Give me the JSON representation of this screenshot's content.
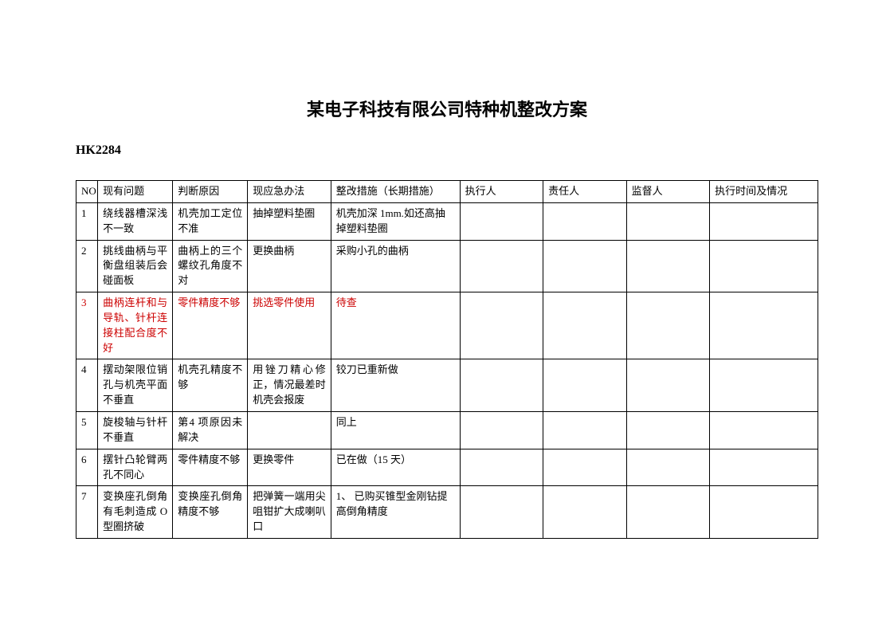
{
  "title": "某电子科技有限公司特种机整改方案",
  "subtitle": "HK2284",
  "columns": {
    "no": "NO",
    "problem": "现有问题",
    "reason": "判断原因",
    "emergency": "现应急办法",
    "measure": "整改措施（长期措施）",
    "executor": "执行人",
    "responsible": "责任人",
    "supervisor": "监督人",
    "time": "执行时间及情况"
  },
  "rows": [
    {
      "no": "1",
      "problem": "绕线器槽深浅不一致",
      "reason": "机壳加工定位不准",
      "emergency": "抽掉塑料垫圈",
      "measure": "机壳加深 1mm.如还高抽掉塑料垫圈",
      "executor": "",
      "responsible": "",
      "supervisor": "",
      "time": "",
      "color": "#000000"
    },
    {
      "no": "2",
      "problem": "挑线曲柄与平衡盘组装后会碰面板",
      "reason": "曲柄上的三个螺纹孔角度不对",
      "emergency": "更换曲柄",
      "measure": "采购小孔的曲柄",
      "executor": "",
      "responsible": "",
      "supervisor": "",
      "time": "",
      "color": "#000000"
    },
    {
      "no": "3",
      "problem": "曲柄连杆和与导轨、针杆连接柱配合度不好",
      "reason": "零件精度不够",
      "emergency": "挑选零件使用",
      "measure": "待查",
      "executor": "",
      "responsible": "",
      "supervisor": "",
      "time": "",
      "color": "#cc0000"
    },
    {
      "no": "4",
      "problem": "摆动架限位销孔与机壳平面不垂直",
      "reason": "机壳孔精度不够",
      "emergency": "用锉刀精心修正，情况最差时机壳会报废",
      "measure": "铰刀已重新做",
      "executor": "",
      "responsible": "",
      "supervisor": "",
      "time": "",
      "color": "#000000"
    },
    {
      "no": "5",
      "problem": "旋梭轴与针杆不垂直",
      "reason": "第4 项原因未解决",
      "emergency": "",
      "measure": "同上",
      "executor": "",
      "responsible": "",
      "supervisor": "",
      "time": "",
      "color": "#000000"
    },
    {
      "no": "6",
      "problem": "摆针凸轮臂两孔不同心",
      "reason": "零件精度不够",
      "emergency": "更换零件",
      "measure": "已在做（15 天）",
      "executor": "",
      "responsible": "",
      "supervisor": "",
      "time": "",
      "color": "#000000"
    },
    {
      "no": "7",
      "problem": "变换座孔倒角有毛刺造成 O 型圈挤破",
      "reason": "变换座孔倒角精度不够",
      "emergency": "把弹簧一端用尖咀钳扩大成喇叭口",
      "measure": "1、 已购买锥型金刚钻提高倒角精度",
      "executor": "",
      "responsible": "",
      "supervisor": "",
      "time": "",
      "color": "#000000"
    }
  ],
  "table_style": {
    "border_color": "#000000",
    "background_color": "#ffffff",
    "font_size_body": 13,
    "font_size_title": 22,
    "font_size_subtitle": 16,
    "red_row_index": 2
  }
}
